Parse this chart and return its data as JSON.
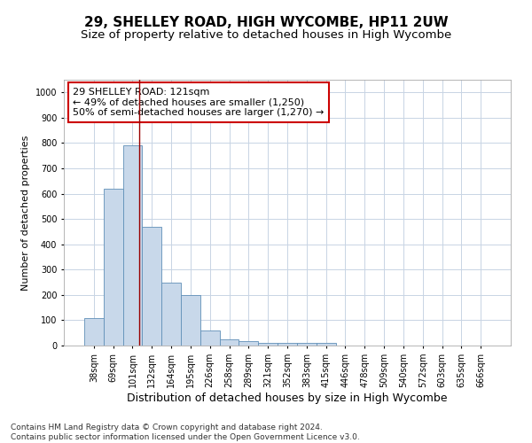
{
  "title": "29, SHELLEY ROAD, HIGH WYCOMBE, HP11 2UW",
  "subtitle": "Size of property relative to detached houses in High Wycombe",
  "xlabel": "Distribution of detached houses by size in High Wycombe",
  "ylabel": "Number of detached properties",
  "categories": [
    "38sqm",
    "69sqm",
    "101sqm",
    "132sqm",
    "164sqm",
    "195sqm",
    "226sqm",
    "258sqm",
    "289sqm",
    "321sqm",
    "352sqm",
    "383sqm",
    "415sqm",
    "446sqm",
    "478sqm",
    "509sqm",
    "540sqm",
    "572sqm",
    "603sqm",
    "635sqm",
    "666sqm"
  ],
  "values": [
    110,
    620,
    790,
    470,
    250,
    200,
    60,
    25,
    17,
    10,
    10,
    10,
    10,
    0,
    0,
    0,
    0,
    0,
    0,
    0,
    0
  ],
  "bar_color": "#c8d8ea",
  "bar_edge_color": "#6090b8",
  "vline_color": "#990000",
  "annotation_text": "29 SHELLEY ROAD: 121sqm\n← 49% of detached houses are smaller (1,250)\n50% of semi-detached houses are larger (1,270) →",
  "annotation_box_color": "white",
  "annotation_box_edge": "#cc0000",
  "ylim": [
    0,
    1050
  ],
  "yticks": [
    0,
    100,
    200,
    300,
    400,
    500,
    600,
    700,
    800,
    900,
    1000
  ],
  "grid_color": "#c8d4e4",
  "footnote": "Contains HM Land Registry data © Crown copyright and database right 2024.\nContains public sector information licensed under the Open Government Licence v3.0.",
  "title_fontsize": 11,
  "subtitle_fontsize": 9.5,
  "xlabel_fontsize": 9,
  "ylabel_fontsize": 8,
  "tick_fontsize": 7,
  "annotation_fontsize": 8,
  "footnote_fontsize": 6.5
}
